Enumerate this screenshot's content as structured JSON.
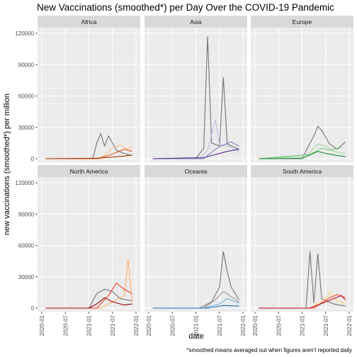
{
  "chart_data": {
    "type": "line",
    "title": "New Vaccinations (smoothed*) per Day Over the COVID-19 Pandemic",
    "xlabel": "date",
    "ylabel": "new vaccinations (smoothed*) per million",
    "caption": "*smoothed means averaged out when figures aren't reported daily",
    "x_ticks": [
      "2020-01",
      "2020-07",
      "2021-01",
      "2021-07",
      "2022-01"
    ],
    "x_range": [
      "2020-01",
      "2022-01"
    ],
    "y_ticks": [
      "0",
      "30000",
      "60000",
      "90000",
      "120000"
    ],
    "ylim": [
      0,
      120000
    ],
    "grid": true,
    "legend": "none",
    "panels": [
      {
        "label": "Africa",
        "series": [
          {
            "color": "#737373",
            "values": [
              [
                "2020-02",
                0
              ],
              [
                "2021-02",
                0
              ],
              [
                "2021-03",
                15000
              ],
              [
                "2021-04",
                24000
              ],
              [
                "2021-05",
                12000
              ],
              [
                "2021-06",
                22000
              ],
              [
                "2021-08",
                8000
              ],
              [
                "2021-10",
                5000
              ],
              [
                "2021-12",
                3000
              ]
            ]
          },
          {
            "color": "#fdbe85",
            "values": [
              [
                "2020-02",
                0
              ],
              [
                "2021-04",
                0
              ],
              [
                "2021-07",
                10000
              ],
              [
                "2021-09",
                13000
              ],
              [
                "2021-11",
                9000
              ],
              [
                "2021-12",
                12000
              ]
            ]
          },
          {
            "color": "#e6550d",
            "values": [
              [
                "2020-02",
                0
              ],
              [
                "2021-03",
                0
              ],
              [
                "2021-06",
                3000
              ],
              [
                "2021-08",
                6000
              ],
              [
                "2021-10",
                9000
              ],
              [
                "2021-12",
                7000
              ]
            ]
          },
          {
            "color": "#a63603",
            "values": [
              [
                "2020-02",
                0
              ],
              [
                "2021-03",
                500
              ],
              [
                "2021-07",
                1500
              ],
              [
                "2021-10",
                2500
              ],
              [
                "2021-12",
                3500
              ]
            ]
          }
        ]
      },
      {
        "label": "Asia",
        "series": [
          {
            "color": "#737373",
            "values": [
              [
                "2020-02",
                0
              ],
              [
                "2021-01",
                0
              ],
              [
                "2021-03",
                10000
              ],
              [
                "2021-04",
                117000
              ],
              [
                "2021-05",
                15000
              ],
              [
                "2021-07",
                12000
              ],
              [
                "2021-08",
                78000
              ],
              [
                "2021-09",
                14000
              ],
              [
                "2021-12",
                9000
              ]
            ]
          },
          {
            "color": "#bcbddc",
            "values": [
              [
                "2020-02",
                0
              ],
              [
                "2021-02",
                0
              ],
              [
                "2021-04",
                8000
              ],
              [
                "2021-06",
                37000
              ],
              [
                "2021-07",
                14000
              ],
              [
                "2021-10",
                11000
              ],
              [
                "2021-12",
                6000
              ]
            ]
          },
          {
            "color": "#807dba",
            "values": [
              [
                "2020-02",
                0
              ],
              [
                "2021-03",
                0
              ],
              [
                "2021-06",
                9000
              ],
              [
                "2021-08",
                13000
              ],
              [
                "2021-10",
                16000
              ],
              [
                "2021-12",
                12000
              ]
            ]
          },
          {
            "color": "#54278f",
            "values": [
              [
                "2020-02",
                0
              ],
              [
                "2021-03",
                1000
              ],
              [
                "2021-06",
                4000
              ],
              [
                "2021-09",
                7000
              ],
              [
                "2021-12",
                9000
              ]
            ]
          }
        ]
      },
      {
        "label": "Europe",
        "series": [
          {
            "color": "#737373",
            "values": [
              [
                "2020-02",
                0
              ],
              [
                "2021-01",
                0
              ],
              [
                "2021-04",
                22000
              ],
              [
                "2021-05",
                31000
              ],
              [
                "2021-06",
                27000
              ],
              [
                "2021-08",
                14000
              ],
              [
                "2021-10",
                9000
              ],
              [
                "2021-12",
                16000
              ]
            ]
          },
          {
            "color": "#a1d99b",
            "values": [
              [
                "2020-02",
                0
              ],
              [
                "2021-02",
                2000
              ],
              [
                "2021-05",
                14000
              ],
              [
                "2021-07",
                12000
              ],
              [
                "2021-09",
                7000
              ],
              [
                "2021-12",
                5000
              ]
            ]
          },
          {
            "color": "#74c476",
            "values": [
              [
                "2020-02",
                0
              ],
              [
                "2021-03",
                4000
              ],
              [
                "2021-06",
                10000
              ],
              [
                "2021-08",
                8000
              ],
              [
                "2021-11",
                11000
              ]
            ]
          },
          {
            "color": "#238b45",
            "values": [
              [
                "2020-02",
                0
              ],
              [
                "2021-01",
                300
              ],
              [
                "2021-05",
                7000
              ],
              [
                "2021-07",
                5000
              ],
              [
                "2021-10",
                3000
              ],
              [
                "2021-12",
                2000
              ]
            ]
          }
        ]
      },
      {
        "label": "North America",
        "series": [
          {
            "color": "#737373",
            "values": [
              [
                "2020-02",
                0
              ],
              [
                "2021-01",
                0
              ],
              [
                "2021-03",
                14000
              ],
              [
                "2021-05",
                18000
              ],
              [
                "2021-07",
                16000
              ],
              [
                "2021-09",
                9000
              ],
              [
                "2021-12",
                7000
              ]
            ]
          },
          {
            "color": "#fdae6b",
            "values": [
              [
                "2020-02",
                0
              ],
              [
                "2021-04",
                0
              ],
              [
                "2021-08",
                8000
              ],
              [
                "2021-10",
                12000
              ],
              [
                "2021-11",
                46000
              ],
              [
                "2021-12",
                6000
              ]
            ]
          },
          {
            "color": "#ef3b2c",
            "values": [
              [
                "2020-02",
                0
              ],
              [
                "2021-03",
                0
              ],
              [
                "2021-06",
                12000
              ],
              [
                "2021-08",
                24000
              ],
              [
                "2021-10",
                18000
              ],
              [
                "2021-12",
                14000
              ]
            ]
          },
          {
            "color": "#99000d",
            "values": [
              [
                "2020-02",
                0
              ],
              [
                "2021-01",
                0
              ],
              [
                "2021-03",
                4000
              ],
              [
                "2021-05",
                10000
              ],
              [
                "2021-07",
                6000
              ],
              [
                "2021-10",
                3000
              ],
              [
                "2021-12",
                4000
              ]
            ]
          }
        ]
      },
      {
        "label": "Oceania",
        "series": [
          {
            "color": "#737373",
            "values": [
              [
                "2020-02",
                0
              ],
              [
                "2021-02",
                0
              ],
              [
                "2021-05",
                6000
              ],
              [
                "2021-07",
                20000
              ],
              [
                "2021-08",
                54000
              ],
              [
                "2021-09",
                35000
              ],
              [
                "2021-10",
                20000
              ],
              [
                "2021-12",
                8000
              ]
            ]
          },
          {
            "color": "#969696",
            "values": [
              [
                "2020-02",
                0
              ],
              [
                "2021-03",
                0
              ],
              [
                "2021-06",
                8000
              ],
              [
                "2021-08",
                16000
              ],
              [
                "2021-10",
                11000
              ],
              [
                "2021-12",
                6000
              ]
            ]
          },
          {
            "color": "#6baed6",
            "values": [
              [
                "2020-02",
                0
              ],
              [
                "2021-03",
                0
              ],
              [
                "2021-07",
                4000
              ],
              [
                "2021-09",
                9000
              ],
              [
                "2021-12",
                5000
              ]
            ]
          },
          {
            "color": "#2171b5",
            "values": [
              [
                "2020-02",
                0
              ],
              [
                "2021-04",
                0
              ],
              [
                "2021-08",
                2500
              ],
              [
                "2021-12",
                2000
              ]
            ]
          }
        ]
      },
      {
        "label": "South America",
        "series": [
          {
            "color": "#737373",
            "values": [
              [
                "2020-02",
                0
              ],
              [
                "2021-02",
                0
              ],
              [
                "2021-03",
                54000
              ],
              [
                "2021-04",
                5000
              ],
              [
                "2021-05",
                52000
              ],
              [
                "2021-06",
                9000
              ],
              [
                "2021-09",
                4000
              ],
              [
                "2021-12",
                2000
              ]
            ]
          },
          {
            "color": "#fed976",
            "values": [
              [
                "2020-02",
                0
              ],
              [
                "2021-03",
                0
              ],
              [
                "2021-07",
                9000
              ],
              [
                "2021-08",
                15000
              ],
              [
                "2021-10",
                7000
              ],
              [
                "2021-12",
                4000
              ]
            ]
          },
          {
            "color": "#fc4e2a",
            "values": [
              [
                "2020-02",
                0
              ],
              [
                "2021-04",
                0
              ],
              [
                "2021-08",
                10000
              ],
              [
                "2021-10",
                13000
              ],
              [
                "2021-12",
                10000
              ]
            ]
          },
          {
            "color": "#bd0026",
            "values": [
              [
                "2020-02",
                0
              ],
              [
                "2021-03",
                0
              ],
              [
                "2021-07",
                6000
              ],
              [
                "2021-09",
                9000
              ],
              [
                "2021-11",
                12000
              ],
              [
                "2021-12",
                8000
              ]
            ]
          }
        ]
      }
    ]
  }
}
